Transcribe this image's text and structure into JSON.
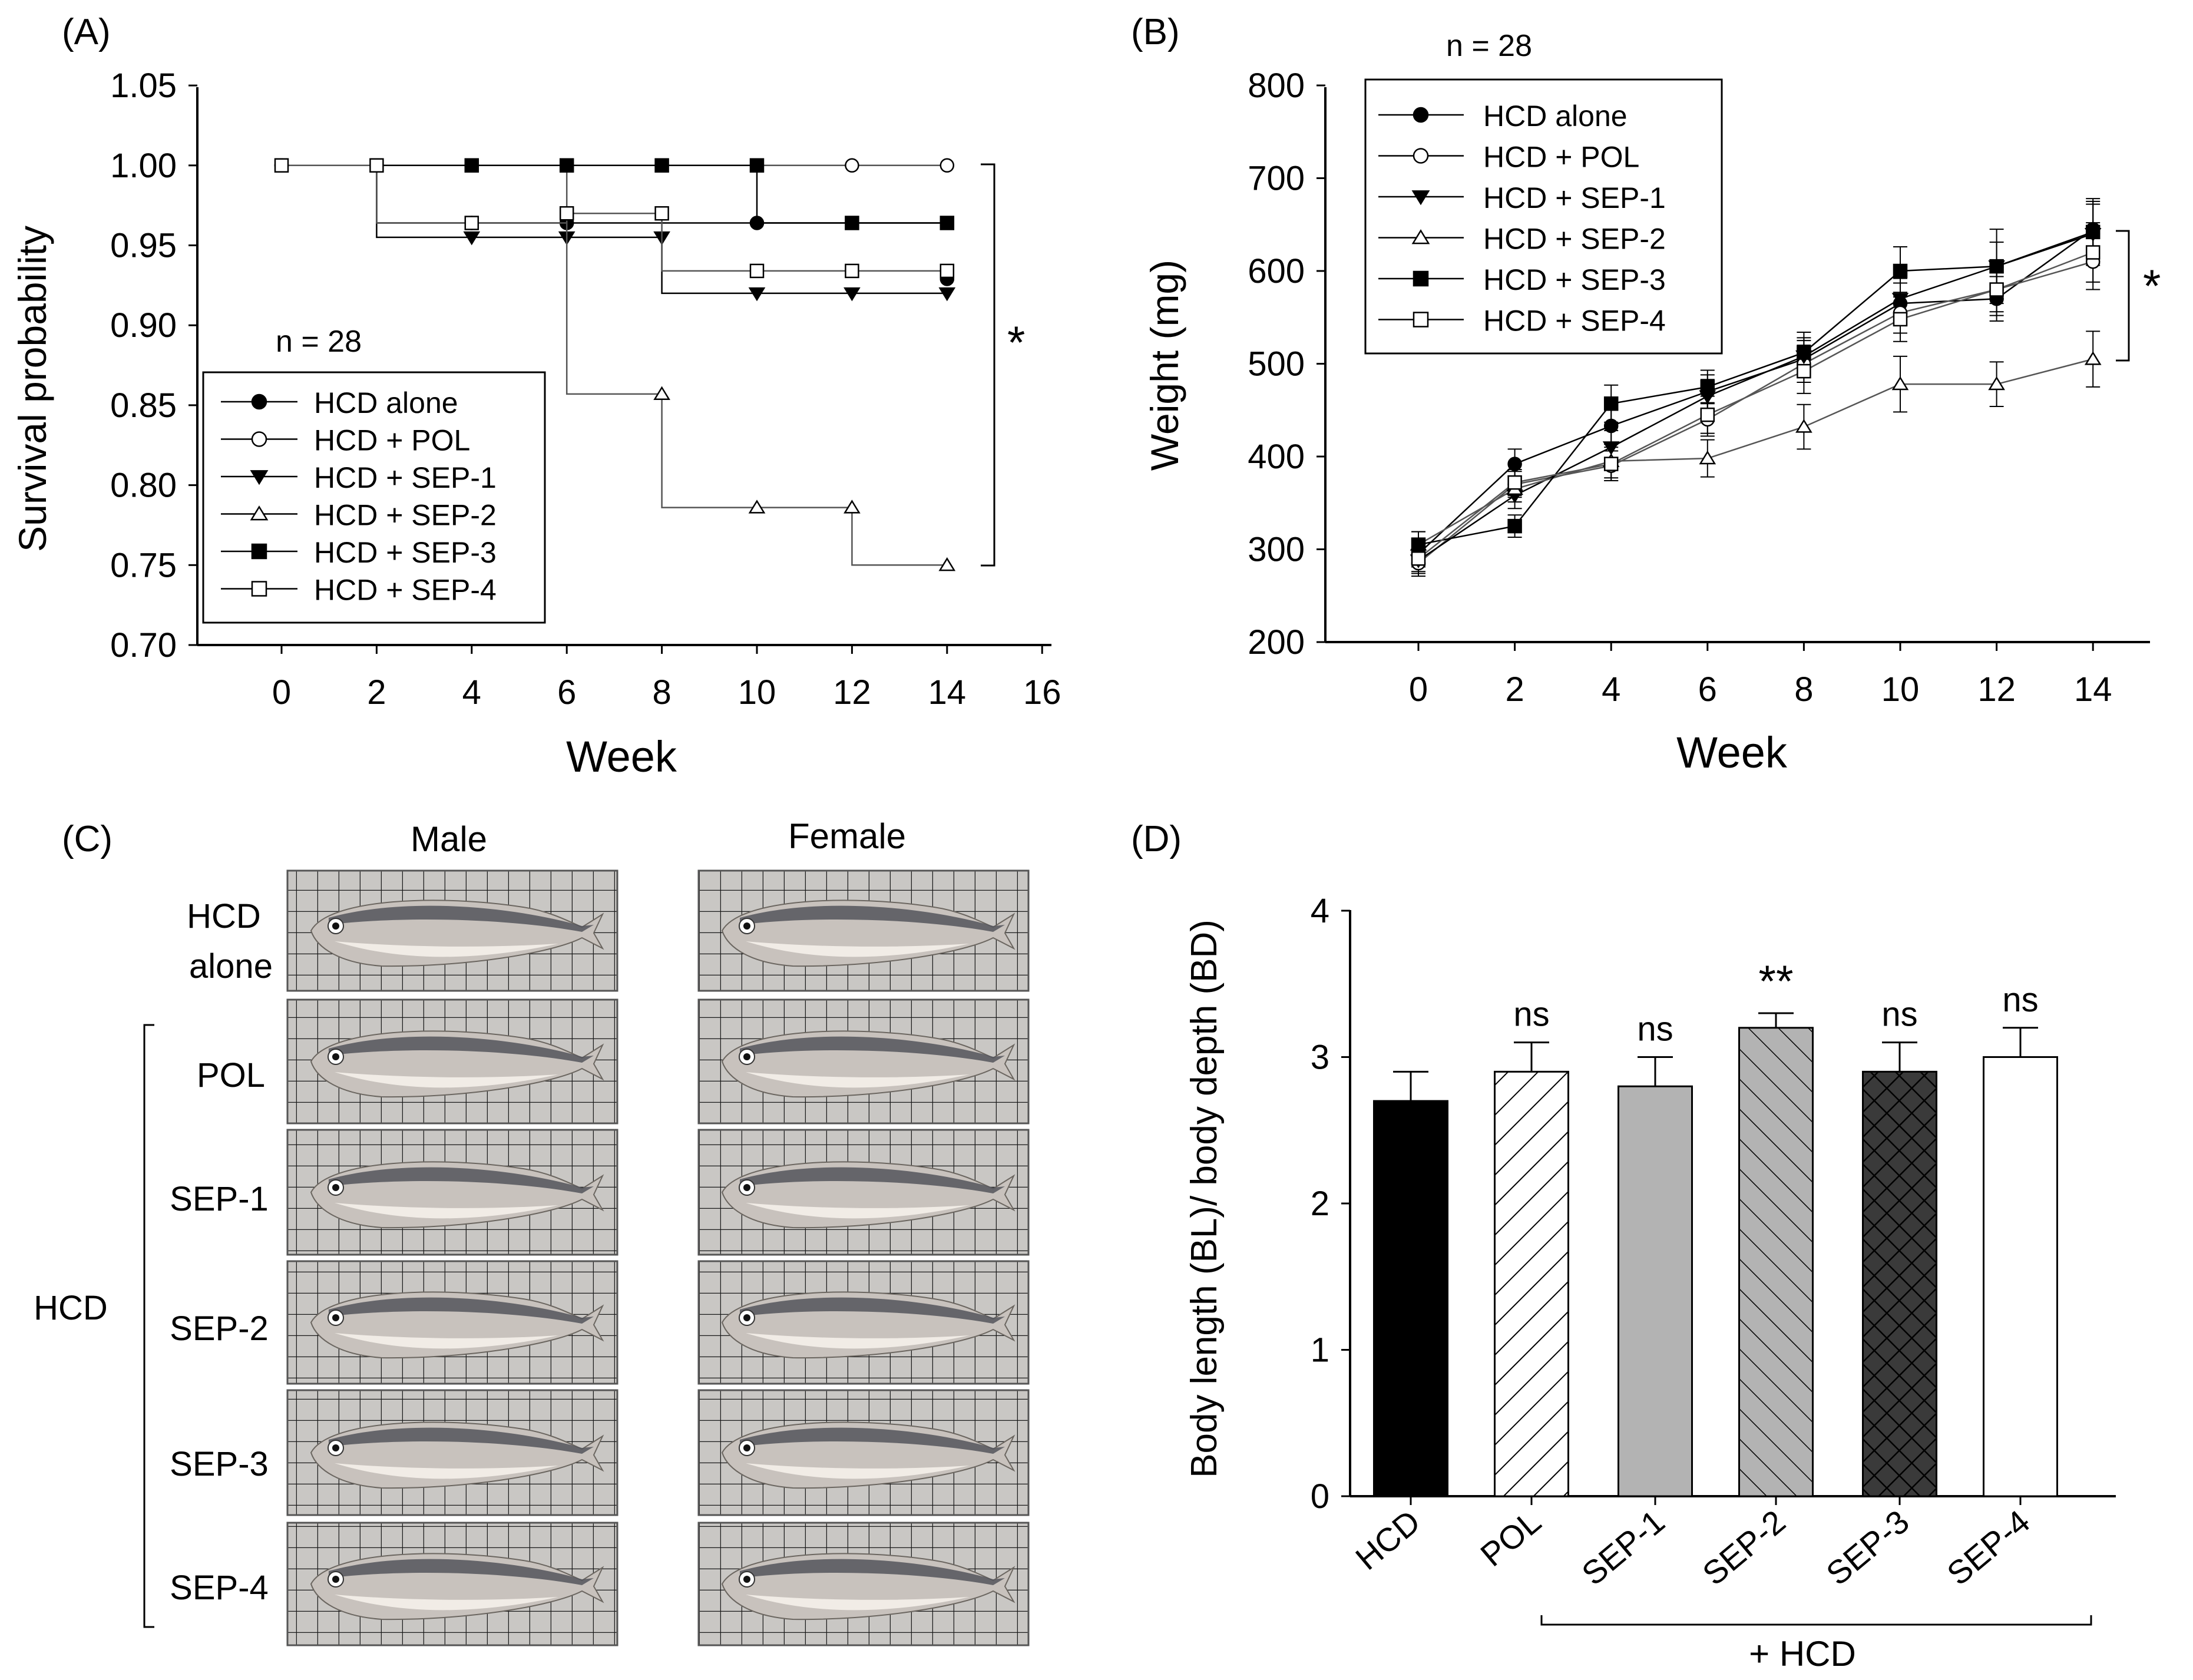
{
  "colors": {
    "ink": "#000000",
    "white": "#ffffff",
    "gray": "#b3b3b3",
    "dark": "#3a3a3a",
    "grid_bg": "#c9c7c4",
    "grid_line": "#1a1a1a",
    "fish_body": "#c8c2bd",
    "fish_back": "#54555c",
    "fish_belly": "#f1ece6"
  },
  "panel_c": {
    "label": "(C)",
    "col_male": "Male",
    "col_female": "Female",
    "group_label": "HCD",
    "rows": [
      {
        "line1": "HCD",
        "line2": "alone"
      },
      {
        "line1": "POL"
      },
      {
        "line1": "SEP-1"
      },
      {
        "line1": "SEP-2"
      },
      {
        "line1": "SEP-3"
      },
      {
        "line1": "SEP-4"
      }
    ]
  },
  "chart_data": [
    {
      "id": "A",
      "panel_label": "(A)",
      "type": "line",
      "subtype": "kaplan-meier",
      "xlabel": "Week",
      "ylabel": "Survival probability",
      "xlim": [
        -2,
        16
      ],
      "ylim": [
        0.7,
        1.05
      ],
      "xticks": [
        0,
        2,
        4,
        6,
        8,
        10,
        12,
        14,
        16
      ],
      "yticks": [
        0.7,
        0.75,
        0.8,
        0.85,
        0.9,
        0.95,
        1.0,
        1.05
      ],
      "n_text": "n = 28",
      "significance": "*",
      "legend_position": "bottom-left",
      "series": [
        {
          "name": "HCD alone",
          "marker": "circle",
          "fill": "black",
          "steps": [
            [
              0,
              1.0
            ],
            [
              2,
              0.964
            ],
            [
              14,
              0.964
            ]
          ],
          "censor": [
            [
              0,
              1.0
            ],
            [
              4,
              0.964
            ],
            [
              6,
              0.964
            ],
            [
              10,
              0.964
            ],
            [
              14,
              0.929
            ]
          ]
        },
        {
          "name": "HCD + POL",
          "marker": "circle",
          "fill": "white",
          "steps": [
            [
              0,
              1.0
            ],
            [
              14,
              1.0
            ]
          ],
          "censor": [
            [
              0,
              1.0
            ],
            [
              12,
              1.0
            ],
            [
              14,
              1.0
            ]
          ]
        },
        {
          "name": "HCD + SEP-1",
          "marker": "triangle-down",
          "fill": "black",
          "steps": [
            [
              0,
              1.0
            ],
            [
              2,
              0.955
            ],
            [
              8,
              0.92
            ],
            [
              14,
              0.92
            ]
          ],
          "censor": [
            [
              4,
              0.955
            ],
            [
              6,
              0.955
            ],
            [
              8,
              0.955
            ],
            [
              10,
              0.92
            ],
            [
              12,
              0.92
            ],
            [
              14,
              0.92
            ]
          ]
        },
        {
          "name": "HCD + SEP-2",
          "marker": "triangle-up",
          "fill": "white",
          "steps": [
            [
              0,
              1.0
            ],
            [
              6,
              0.857
            ],
            [
              8,
              0.786
            ],
            [
              12,
              0.75
            ],
            [
              14,
              0.75
            ]
          ],
          "censor": [
            [
              8,
              0.857
            ],
            [
              10,
              0.786
            ],
            [
              12,
              0.786
            ],
            [
              14,
              0.75
            ]
          ]
        },
        {
          "name": "HCD + SEP-3",
          "marker": "square",
          "fill": "black",
          "steps": [
            [
              0,
              1.0
            ],
            [
              10,
              0.964
            ],
            [
              14,
              0.964
            ]
          ],
          "censor": [
            [
              4,
              1.0
            ],
            [
              6,
              1.0
            ],
            [
              8,
              1.0
            ],
            [
              10,
              1.0
            ],
            [
              12,
              0.964
            ],
            [
              14,
              0.964
            ]
          ]
        },
        {
          "name": "HCD + SEP-4",
          "marker": "square",
          "fill": "white",
          "steps": [
            [
              0,
              1.0
            ],
            [
              2,
              0.964
            ],
            [
              6,
              0.97
            ],
            [
              8,
              0.934
            ],
            [
              14,
              0.934
            ]
          ],
          "censor": [
            [
              0,
              1.0
            ],
            [
              2,
              1.0
            ],
            [
              4,
              0.964
            ],
            [
              6,
              0.97
            ],
            [
              8,
              0.97
            ],
            [
              10,
              0.934
            ],
            [
              12,
              0.934
            ],
            [
              14,
              0.934
            ]
          ]
        }
      ]
    },
    {
      "id": "B",
      "panel_label": "(B)",
      "type": "line",
      "xlabel": "Week",
      "ylabel": "Weight (mg)",
      "xlim": [
        -2,
        15
      ],
      "ylim": [
        200,
        800
      ],
      "xticks": [
        0,
        2,
        4,
        6,
        8,
        10,
        12,
        14
      ],
      "yticks": [
        200,
        300,
        400,
        500,
        600,
        700,
        800
      ],
      "n_text": "n = 28",
      "significance": "*",
      "legend_position": "top-left",
      "x": [
        0,
        2,
        4,
        6,
        8,
        10,
        12,
        14
      ],
      "series": [
        {
          "name": "HCD alone",
          "marker": "circle",
          "fill": "black",
          "values": [
            295,
            392,
            433,
            470,
            505,
            565,
            570,
            645
          ],
          "err": [
            14,
            16,
            18,
            18,
            20,
            22,
            24,
            30
          ]
        },
        {
          "name": "HCD + POL",
          "marker": "circle",
          "fill": "white",
          "values": [
            285,
            370,
            390,
            440,
            500,
            555,
            580,
            610
          ],
          "err": [
            14,
            14,
            16,
            18,
            20,
            22,
            24,
            30
          ]
        },
        {
          "name": "HCD + SEP-1",
          "marker": "triangle-down",
          "fill": "black",
          "values": [
            288,
            358,
            410,
            465,
            508,
            570,
            605,
            640
          ],
          "err": [
            14,
            14,
            18,
            18,
            20,
            22,
            26,
            32
          ]
        },
        {
          "name": "HCD + SEP-2",
          "marker": "triangle-up",
          "fill": "white",
          "values": [
            305,
            365,
            395,
            398,
            432,
            478,
            478,
            505
          ],
          "err": [
            14,
            14,
            18,
            20,
            24,
            30,
            24,
            30
          ]
        },
        {
          "name": "HCD + SEP-3",
          "marker": "square",
          "fill": "black",
          "values": [
            305,
            325,
            457,
            475,
            512,
            600,
            605,
            642
          ],
          "err": [
            14,
            12,
            20,
            18,
            22,
            26,
            40,
            36
          ]
        },
        {
          "name": "HCD + SEP-4",
          "marker": "square",
          "fill": "white",
          "values": [
            290,
            372,
            392,
            445,
            492,
            548,
            580,
            620
          ],
          "err": [
            14,
            14,
            18,
            20,
            24,
            24,
            28,
            32
          ]
        }
      ]
    },
    {
      "id": "D",
      "panel_label": "(D)",
      "type": "bar",
      "ylabel": "Body length (BL)/ body depth (BD)",
      "ylim": [
        0,
        4
      ],
      "yticks": [
        0,
        1,
        2,
        3,
        4
      ],
      "group_label": "+ HCD",
      "categories": [
        "HCD",
        "POL",
        "SEP-1",
        "SEP-2",
        "SEP-3",
        "SEP-4"
      ],
      "values": [
        2.7,
        2.9,
        2.8,
        3.2,
        2.9,
        3.0
      ],
      "err": [
        0.2,
        0.2,
        0.2,
        0.1,
        0.2,
        0.2
      ],
      "annotations": [
        "",
        "ns",
        "ns",
        "**",
        "ns",
        "ns"
      ],
      "fills": [
        "black",
        "white-diag-hatch",
        "gray",
        "gray-diag-hatch",
        "dark-crosshatch",
        "white"
      ]
    }
  ]
}
